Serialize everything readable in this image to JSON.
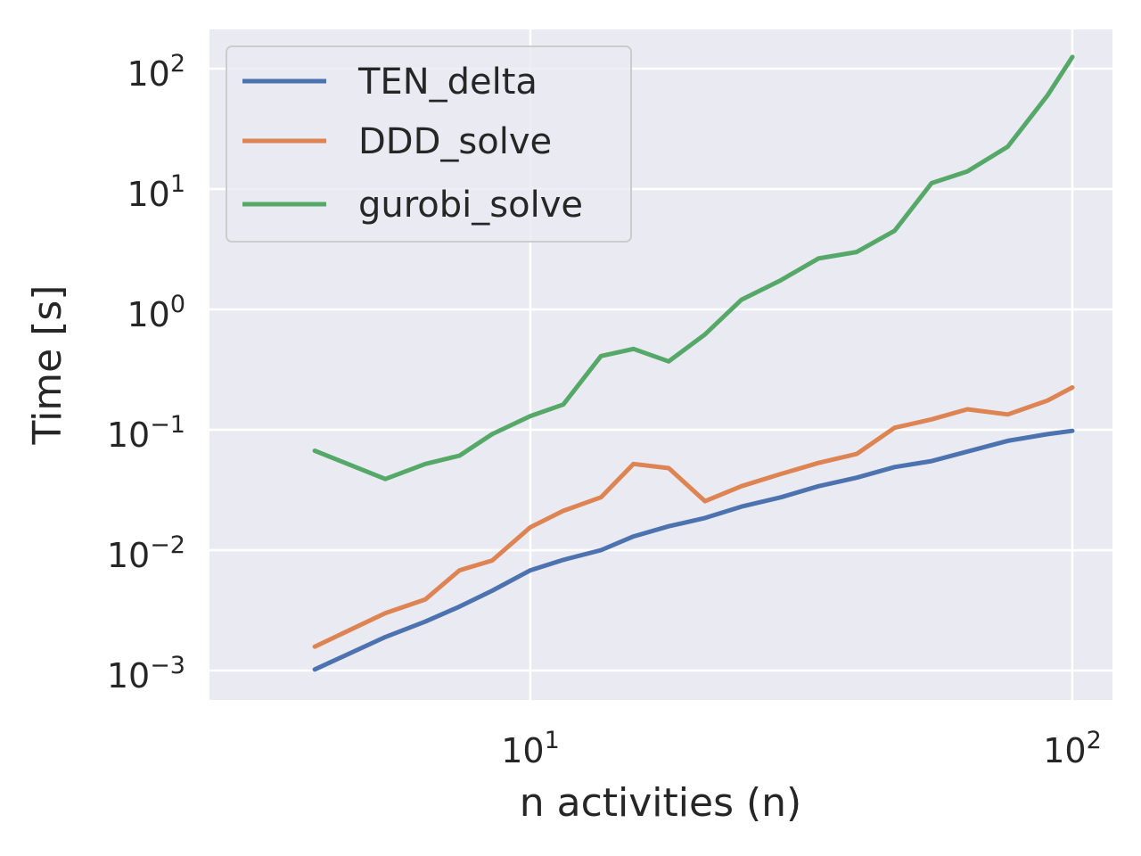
{
  "chart_data": {
    "type": "line",
    "title": "",
    "xlabel": "n activities (n)",
    "ylabel": "Time [s]",
    "xscale": "log",
    "yscale": "log",
    "xlim": [
      3.5,
      115
    ],
    "ylim": [
      0.0006,
      220
    ],
    "grid": true,
    "legend": "upper left",
    "x_ticks": [
      {
        "value": 10,
        "base": "10",
        "exp": "1"
      },
      {
        "value": 100,
        "base": "10",
        "exp": "2"
      }
    ],
    "y_ticks": [
      {
        "value": 0.001,
        "base": "10",
        "exp": "−3"
      },
      {
        "value": 0.01,
        "base": "10",
        "exp": "−2"
      },
      {
        "value": 0.1,
        "base": "10",
        "exp": "−1"
      },
      {
        "value": 1,
        "base": "10",
        "exp": "0"
      },
      {
        "value": 10,
        "base": "10",
        "exp": "1"
      },
      {
        "value": 100,
        "base": "10",
        "exp": "2"
      }
    ],
    "x": [
      4,
      5.4,
      6.4,
      7.4,
      8.5,
      10,
      11.5,
      13.5,
      15.5,
      18,
      21,
      24.5,
      29,
      34,
      40,
      47,
      55,
      64,
      76,
      90,
      100
    ],
    "series": [
      {
        "name": "TEN_delta",
        "color": "#4c72b0",
        "values": [
          0.00102,
          0.0019,
          0.00255,
          0.0034,
          0.0046,
          0.0068,
          0.0083,
          0.01,
          0.013,
          0.0158,
          0.0185,
          0.023,
          0.0275,
          0.034,
          0.04,
          0.049,
          0.055,
          0.066,
          0.081,
          0.092,
          0.098
        ]
      },
      {
        "name": "DDD_solve",
        "color": "#dd8452",
        "values": [
          0.00158,
          0.003,
          0.0039,
          0.0068,
          0.0082,
          0.0155,
          0.0212,
          0.0275,
          0.052,
          0.048,
          0.0255,
          0.034,
          0.043,
          0.053,
          0.063,
          0.104,
          0.122,
          0.148,
          0.134,
          0.175,
          0.225
        ]
      },
      {
        "name": "gurobi_solve",
        "color": "#55a868",
        "values": [
          0.067,
          0.039,
          0.052,
          0.061,
          0.092,
          0.13,
          0.162,
          0.41,
          0.47,
          0.37,
          0.62,
          1.2,
          1.75,
          2.65,
          3.0,
          4.5,
          11.2,
          14.0,
          22.5,
          60,
          125
        ]
      }
    ]
  }
}
